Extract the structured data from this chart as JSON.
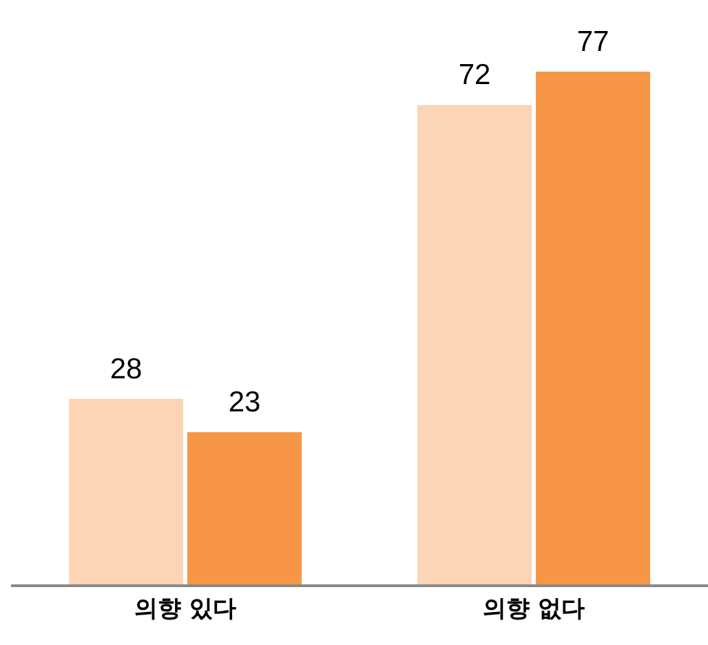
{
  "chart_data": {
    "type": "bar",
    "categories": [
      "의향 있다",
      "의향 없다"
    ],
    "data_labels": true,
    "series": [
      {
        "color": "#fbd5b5",
        "values": [
          28,
          72
        ]
      },
      {
        "color": "#f79646",
        "values": [
          23,
          77
        ]
      }
    ]
  }
}
